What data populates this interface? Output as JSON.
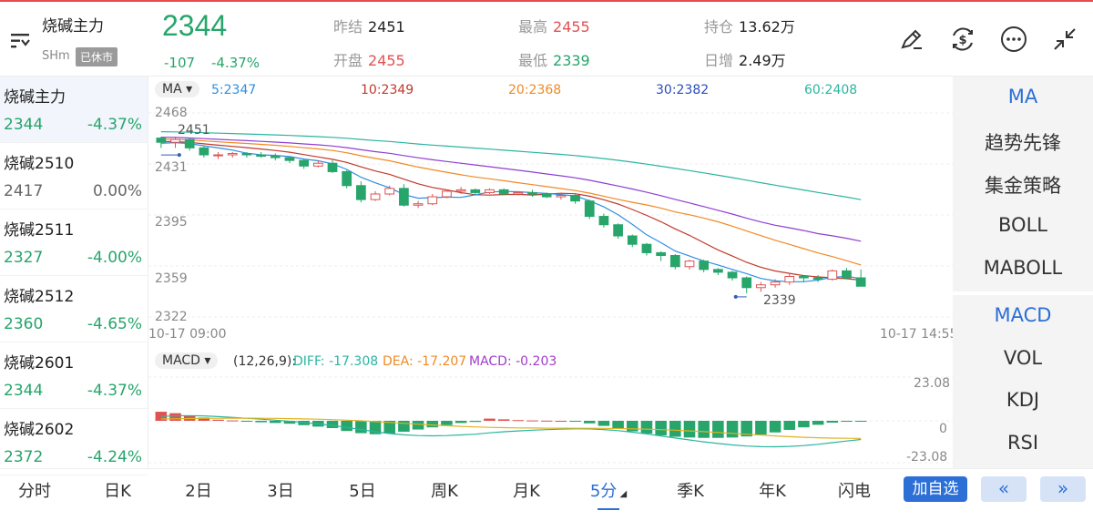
{
  "header": {
    "name": "烧碱主力",
    "code": "SHm",
    "status": "已休市",
    "last": "2344",
    "chg": "-107",
    "chg_pct": "-4.37%",
    "stats": {
      "prev_close_label": "昨结",
      "prev_close": "2451",
      "open_label": "开盘",
      "open": "2455",
      "high_label": "最高",
      "high": "2455",
      "low_label": "最低",
      "low": "2339",
      "oi_label": "持仓",
      "oi": "13.62万",
      "oi_chg_label": "日增",
      "oi_chg": "2.49万"
    },
    "tool_icons": [
      "draw-pen-icon",
      "currency-exchange-icon",
      "more-icon",
      "collapse-icon"
    ]
  },
  "watchlist": [
    {
      "name": "烧碱主力",
      "price": "2344",
      "pct": "-4.37%",
      "dir": "down"
    },
    {
      "name": "烧碱2510",
      "price": "2417",
      "pct": "0.00%",
      "dir": "flat"
    },
    {
      "name": "烧碱2511",
      "price": "2327",
      "pct": "-4.00%",
      "dir": "down"
    },
    {
      "name": "烧碱2512",
      "price": "2360",
      "pct": "-4.65%",
      "dir": "down"
    },
    {
      "name": "烧碱2601",
      "price": "2344",
      "pct": "-4.37%",
      "dir": "down"
    },
    {
      "name": "烧碱2602",
      "price": "2372",
      "pct": "-4.24%",
      "dir": "down"
    }
  ],
  "indicators": {
    "main": [
      "MA",
      "趋势先锋",
      "集金策略",
      "BOLL",
      "MABOLL"
    ],
    "sub": [
      "MACD",
      "VOL",
      "KDJ",
      "RSI"
    ]
  },
  "ma_header": {
    "select": "MA",
    "ma5": "5:2347",
    "ma10": "10:2349",
    "ma20": "20:2368",
    "ma30": "30:2382",
    "ma60": "60:2408"
  },
  "colors": {
    "up": "#e05252",
    "down": "#27a56b",
    "ma5": "#2f8fe0",
    "ma10": "#c0392b",
    "ma20": "#f08a24",
    "ma30": "#8e3fd1",
    "ma60": "#2bb5a0",
    "accent": "#2c6fd6"
  },
  "main_axis": {
    "y_ticks": [
      "2468",
      "2431",
      "2395",
      "2359",
      "2322"
    ],
    "high_marker": "2451",
    "low_marker": "2339",
    "time_start": "10-17 09:00",
    "time_end": "10-17 14:55"
  },
  "macd_header": {
    "select": "MACD",
    "params": "(12,26,9):",
    "diff": "DIFF: -17.308",
    "dea": "DEA: -17.207",
    "macd": "MACD: -0.203"
  },
  "macd_axis": {
    "top": "23.08",
    "mid": "0",
    "bottom": "-23.08"
  },
  "chart_data": {
    "type": "candlestick",
    "ylim": [
      2322,
      2468
    ],
    "x_start": "10-17 09:00",
    "x_end": "10-17 14:55",
    "candles": [
      [
        2450,
        2451,
        2443,
        2447
      ],
      [
        2447,
        2451,
        2443,
        2449
      ],
      [
        2449,
        2450,
        2441,
        2443
      ],
      [
        2443,
        2444,
        2436,
        2438
      ],
      [
        2438,
        2440,
        2435,
        2438
      ],
      [
        2438,
        2440,
        2436,
        2439
      ],
      [
        2439,
        2440,
        2436,
        2438
      ],
      [
        2438,
        2440,
        2436,
        2437
      ],
      [
        2437,
        2439,
        2434,
        2436
      ],
      [
        2436,
        2437,
        2432,
        2434
      ],
      [
        2434,
        2435,
        2428,
        2430
      ],
      [
        2430,
        2434,
        2429,
        2432
      ],
      [
        2432,
        2434,
        2425,
        2426
      ],
      [
        2426,
        2427,
        2414,
        2416
      ],
      [
        2416,
        2419,
        2404,
        2406
      ],
      [
        2406,
        2412,
        2405,
        2410
      ],
      [
        2410,
        2416,
        2409,
        2414
      ],
      [
        2414,
        2417,
        2401,
        2402
      ],
      [
        2402,
        2405,
        2400,
        2403
      ],
      [
        2403,
        2410,
        2402,
        2408
      ],
      [
        2408,
        2413,
        2407,
        2412
      ],
      [
        2412,
        2415,
        2410,
        2413
      ],
      [
        2413,
        2414,
        2409,
        2411
      ],
      [
        2411,
        2414,
        2410,
        2413
      ],
      [
        2413,
        2414,
        2409,
        2410
      ],
      [
        2410,
        2412,
        2409,
        2411
      ],
      [
        2411,
        2413,
        2408,
        2410
      ],
      [
        2410,
        2411,
        2407,
        2408
      ],
      [
        2408,
        2410,
        2406,
        2409
      ],
      [
        2409,
        2410,
        2403,
        2405
      ],
      [
        2405,
        2406,
        2392,
        2394
      ],
      [
        2394,
        2396,
        2386,
        2388
      ],
      [
        2388,
        2389,
        2378,
        2380
      ],
      [
        2380,
        2381,
        2372,
        2374
      ],
      [
        2374,
        2375,
        2366,
        2368
      ],
      [
        2368,
        2369,
        2362,
        2366
      ],
      [
        2366,
        2367,
        2356,
        2358
      ],
      [
        2358,
        2363,
        2356,
        2362
      ],
      [
        2362,
        2363,
        2354,
        2356
      ],
      [
        2356,
        2357,
        2352,
        2354
      ],
      [
        2354,
        2355,
        2348,
        2350
      ],
      [
        2350,
        2351,
        2339,
        2343
      ],
      [
        2343,
        2347,
        2340,
        2345
      ],
      [
        2345,
        2349,
        2343,
        2347
      ],
      [
        2347,
        2353,
        2345,
        2351
      ],
      [
        2351,
        2352,
        2347,
        2350
      ],
      [
        2350,
        2352,
        2347,
        2349
      ],
      [
        2349,
        2356,
        2348,
        2355
      ],
      [
        2355,
        2357,
        2349,
        2350
      ],
      [
        2350,
        2356,
        2344,
        2344
      ]
    ],
    "macd_bars": [
      5.0,
      4.2,
      3.0,
      1.8,
      0.6,
      0.2,
      -0.4,
      -0.8,
      -1.2,
      -1.6,
      -2.4,
      -3.2,
      -4.0,
      -5.6,
      -6.8,
      -7.4,
      -7.0,
      -6.0,
      -4.8,
      -3.6,
      -2.4,
      -1.2,
      -0.6,
      1.2,
      0.8,
      0.4,
      0.2,
      0.1,
      0.0,
      -0.2,
      -1.4,
      -2.8,
      -4.4,
      -5.8,
      -7.0,
      -8.0,
      -8.8,
      -9.2,
      -9.4,
      -9.4,
      -9.2,
      -8.6,
      -7.6,
      -6.4,
      -5.0,
      -3.6,
      -2.2,
      -1.0,
      -0.4,
      -0.2
    ]
  }
}
